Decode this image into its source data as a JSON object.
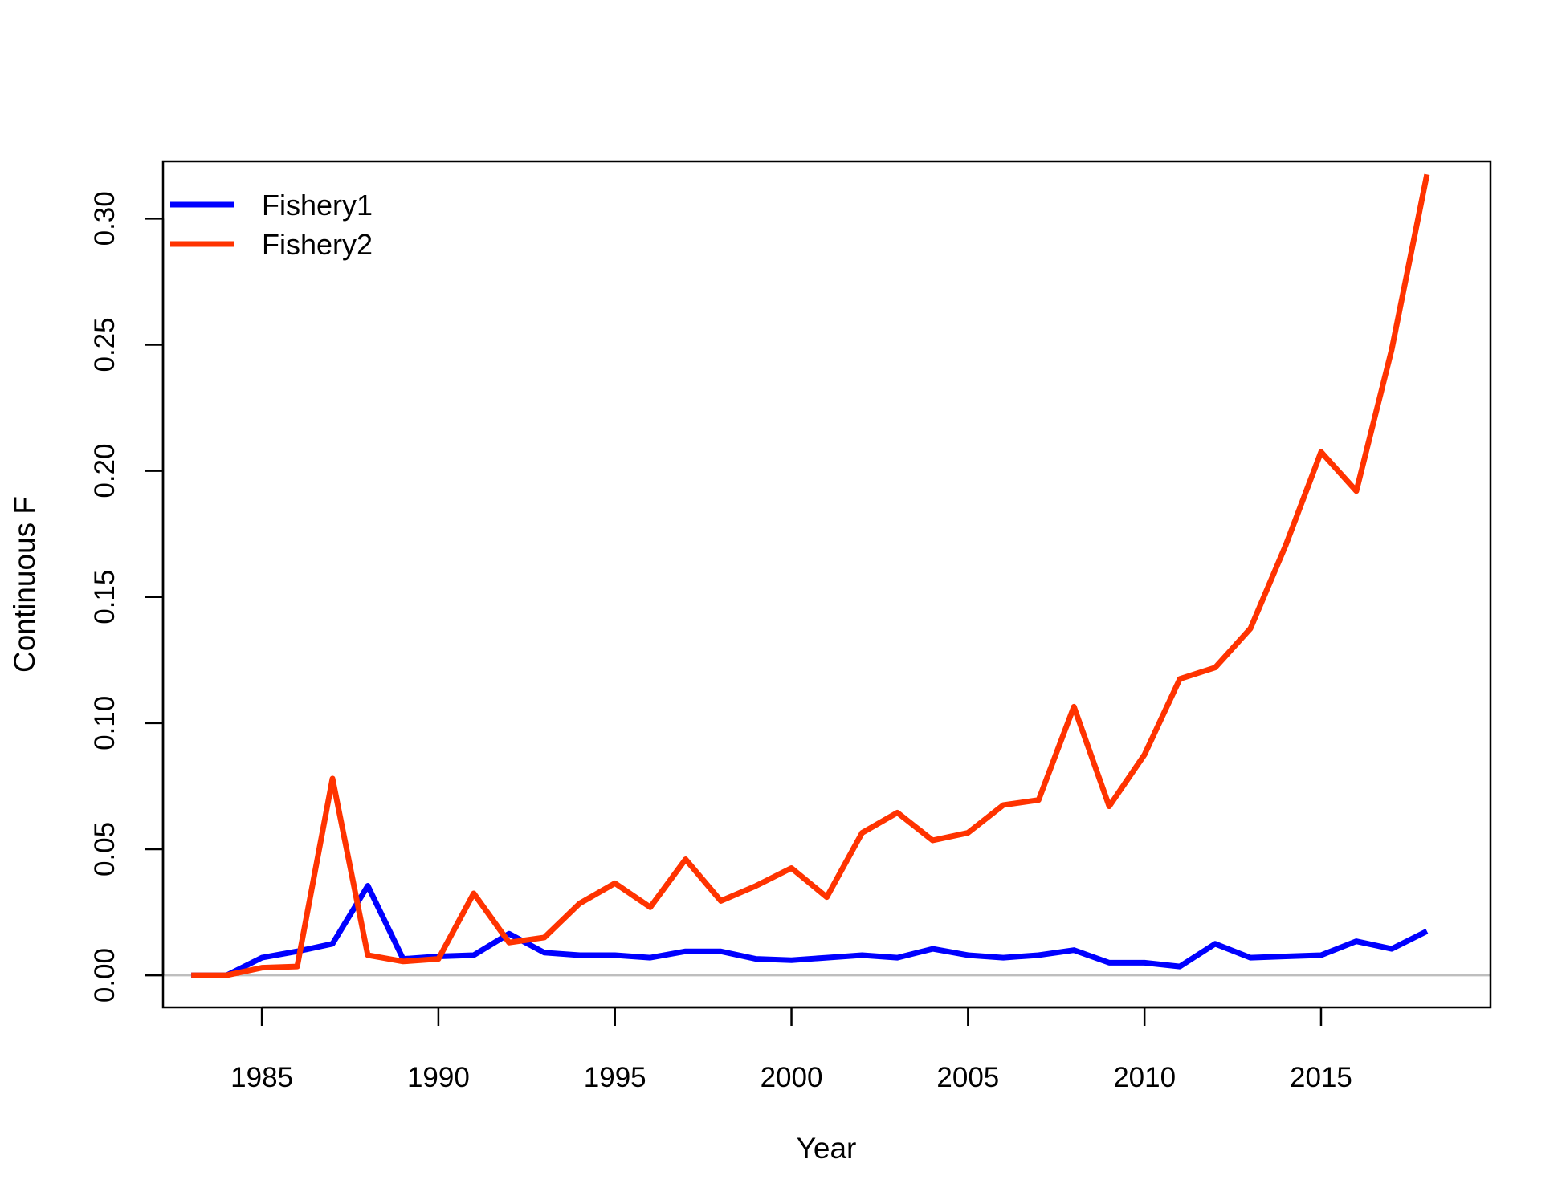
{
  "chart_data": {
    "type": "line",
    "title": "",
    "xlabel": "Year",
    "ylabel": "Continuous F",
    "xlim": [
      1982.2,
      2019.8
    ],
    "ylim": [
      -0.0127,
      0.3227
    ],
    "xticks": [
      1985,
      1990,
      1995,
      2000,
      2005,
      2010,
      2015
    ],
    "yticks": [
      0.0,
      0.05,
      0.1,
      0.15,
      0.2,
      0.25,
      0.3
    ],
    "ytick_labels": [
      "0.00",
      "0.05",
      "0.10",
      "0.15",
      "0.20",
      "0.25",
      "0.30"
    ],
    "grid": false,
    "reference_line": {
      "y": 0,
      "color": "#bebebe"
    },
    "legend": {
      "position": "top-left"
    },
    "x": [
      1983,
      1984,
      1985,
      1986,
      1987,
      1988,
      1989,
      1990,
      1991,
      1992,
      1993,
      1994,
      1995,
      1996,
      1997,
      1998,
      1999,
      2000,
      2001,
      2002,
      2003,
      2004,
      2005,
      2006,
      2007,
      2008,
      2009,
      2010,
      2011,
      2012,
      2013,
      2014,
      2015,
      2016,
      2017,
      2018
    ],
    "series": [
      {
        "name": "Fishery1",
        "color": "#0000ff",
        "values": [
          0,
          0,
          0.007,
          0.0095,
          0.0125,
          0.0355,
          0.0065,
          0.0075,
          0.008,
          0.0165,
          0.009,
          0.008,
          0.008,
          0.007,
          0.0095,
          0.0095,
          0.0065,
          0.006,
          0.007,
          0.008,
          0.007,
          0.0105,
          0.008,
          0.007,
          0.008,
          0.01,
          0.005,
          0.005,
          0.0035,
          0.0125,
          0.007,
          0.0075,
          0.008,
          0.0135,
          0.0105,
          0.0175
        ]
      },
      {
        "name": "Fishery2",
        "color": "#ff3300",
        "values": [
          0,
          0,
          0.003,
          0.0035,
          0.078,
          0.008,
          0.0055,
          0.0065,
          0.0325,
          0.013,
          0.015,
          0.0285,
          0.0365,
          0.027,
          0.046,
          0.0295,
          0.0355,
          0.0425,
          0.031,
          0.0565,
          0.0645,
          0.0535,
          0.0565,
          0.0675,
          0.0695,
          0.1065,
          0.067,
          0.0875,
          0.1175,
          0.122,
          0.1375,
          0.1705,
          0.2075,
          0.192,
          0.248,
          0.3175
        ]
      }
    ]
  }
}
